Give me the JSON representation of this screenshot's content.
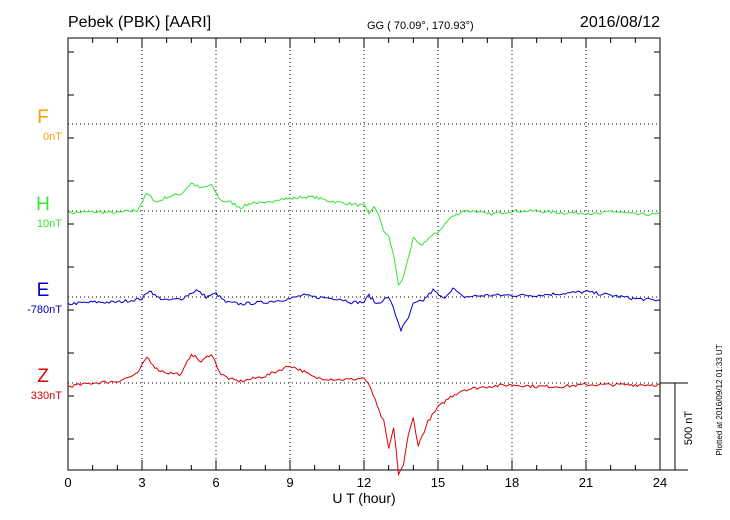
{
  "header": {
    "station": "Pebek (PBK)  [AARI]",
    "coords": "GG ( 70.09°, 170.93°)",
    "date": "2016/08/12"
  },
  "plotted_note": "Plotted at 2016/09/12 01:33 UT",
  "chart_data": {
    "type": "line",
    "xlabel": "U T (hour)",
    "xlim": [
      0,
      24
    ],
    "xticks": [
      0,
      3,
      6,
      9,
      12,
      15,
      18,
      21,
      24
    ],
    "xtick_labels": [
      "0",
      "3",
      "6",
      "9",
      "12",
      "15",
      "18",
      "21",
      "24"
    ],
    "grid": true,
    "scale_bar": {
      "value_nT": 500,
      "label": "500 nT"
    },
    "series": [
      {
        "name": "F",
        "baseline_label": "0nT",
        "color": "#f5a000",
        "baseline_nT": 0,
        "points": []
      },
      {
        "name": "H",
        "baseline_label": "10nT",
        "color": "#33e633",
        "baseline_nT": 10,
        "points": [
          [
            0,
            -10
          ],
          [
            1,
            -5
          ],
          [
            2,
            -10
          ],
          [
            2.8,
            5
          ],
          [
            3.2,
            100
          ],
          [
            3.6,
            50
          ],
          [
            4.0,
            80
          ],
          [
            4.6,
            100
          ],
          [
            5.0,
            160
          ],
          [
            5.4,
            130
          ],
          [
            5.8,
            150
          ],
          [
            6.2,
            60
          ],
          [
            6.6,
            50
          ],
          [
            7.0,
            20
          ],
          [
            7.5,
            50
          ],
          [
            8.0,
            40
          ],
          [
            8.5,
            70
          ],
          [
            9.0,
            70
          ],
          [
            9.5,
            80
          ],
          [
            10.0,
            80
          ],
          [
            10.5,
            60
          ],
          [
            11.0,
            50
          ],
          [
            11.5,
            40
          ],
          [
            12.0,
            30
          ],
          [
            12.2,
            -20
          ],
          [
            12.4,
            30
          ],
          [
            12.6,
            -30
          ],
          [
            12.8,
            -110
          ],
          [
            13.0,
            -150
          ],
          [
            13.2,
            -250
          ],
          [
            13.4,
            -430
          ],
          [
            13.6,
            -380
          ],
          [
            13.8,
            -260
          ],
          [
            14.0,
            -160
          ],
          [
            14.3,
            -200
          ],
          [
            14.6,
            -160
          ],
          [
            15.0,
            -120
          ],
          [
            15.5,
            -40
          ],
          [
            16.0,
            0
          ],
          [
            16.5,
            0
          ],
          [
            17.0,
            -20
          ],
          [
            18.0,
            0
          ],
          [
            19.0,
            0
          ],
          [
            20.0,
            -10
          ],
          [
            21.0,
            -10
          ],
          [
            21.5,
            -20
          ],
          [
            22.0,
            0
          ],
          [
            23.0,
            -20
          ],
          [
            24.0,
            -20
          ]
        ]
      },
      {
        "name": "E",
        "baseline_label": "-780nT",
        "color": "#0000cc",
        "baseline_nT": -780,
        "points": [
          [
            0,
            -40
          ],
          [
            1,
            -30
          ],
          [
            2,
            -30
          ],
          [
            3.0,
            -10
          ],
          [
            3.3,
            40
          ],
          [
            3.6,
            0
          ],
          [
            4.0,
            -20
          ],
          [
            4.6,
            -10
          ],
          [
            5.2,
            40
          ],
          [
            5.6,
            0
          ],
          [
            6.0,
            20
          ],
          [
            6.4,
            -30
          ],
          [
            7.0,
            -40
          ],
          [
            8.0,
            -30
          ],
          [
            9.0,
            -10
          ],
          [
            9.5,
            10
          ],
          [
            10.0,
            0
          ],
          [
            11.0,
            -10
          ],
          [
            11.5,
            -30
          ],
          [
            12.0,
            -30
          ],
          [
            12.2,
            10
          ],
          [
            12.5,
            -40
          ],
          [
            13.0,
            0
          ],
          [
            13.2,
            -70
          ],
          [
            13.5,
            -190
          ],
          [
            13.8,
            -120
          ],
          [
            14.0,
            -40
          ],
          [
            14.4,
            -20
          ],
          [
            14.8,
            40
          ],
          [
            15.2,
            -10
          ],
          [
            15.6,
            50
          ],
          [
            16.0,
            0
          ],
          [
            17.0,
            10
          ],
          [
            18.0,
            10
          ],
          [
            19.0,
            10
          ],
          [
            20.0,
            20
          ],
          [
            21.0,
            30
          ],
          [
            22.0,
            10
          ],
          [
            23.0,
            -10
          ],
          [
            24.0,
            -20
          ]
        ]
      },
      {
        "name": "Z",
        "baseline_label": "330nT",
        "color": "#dd0000",
        "baseline_nT": 330,
        "points": [
          [
            0,
            -20
          ],
          [
            1,
            0
          ],
          [
            2,
            10
          ],
          [
            2.8,
            50
          ],
          [
            3.2,
            150
          ],
          [
            3.6,
            80
          ],
          [
            4.0,
            60
          ],
          [
            4.6,
            50
          ],
          [
            5.0,
            170
          ],
          [
            5.4,
            120
          ],
          [
            5.8,
            170
          ],
          [
            6.2,
            50
          ],
          [
            6.6,
            20
          ],
          [
            7.0,
            10
          ],
          [
            8.0,
            40
          ],
          [
            9.0,
            100
          ],
          [
            9.5,
            70
          ],
          [
            10.0,
            30
          ],
          [
            11.0,
            20
          ],
          [
            11.5,
            20
          ],
          [
            12.0,
            30
          ],
          [
            12.3,
            -40
          ],
          [
            12.6,
            -160
          ],
          [
            12.8,
            -220
          ],
          [
            13.0,
            -380
          ],
          [
            13.2,
            -260
          ],
          [
            13.4,
            -520
          ],
          [
            13.6,
            -470
          ],
          [
            13.8,
            -300
          ],
          [
            14.0,
            -200
          ],
          [
            14.2,
            -360
          ],
          [
            14.6,
            -220
          ],
          [
            15.0,
            -140
          ],
          [
            15.5,
            -80
          ],
          [
            16.0,
            -40
          ],
          [
            17.0,
            -20
          ],
          [
            18.0,
            -10
          ],
          [
            19.0,
            -20
          ],
          [
            20.0,
            -20
          ],
          [
            21.0,
            -10
          ],
          [
            22.0,
            -10
          ],
          [
            23.0,
            -10
          ],
          [
            24.0,
            -10
          ]
        ]
      }
    ]
  }
}
